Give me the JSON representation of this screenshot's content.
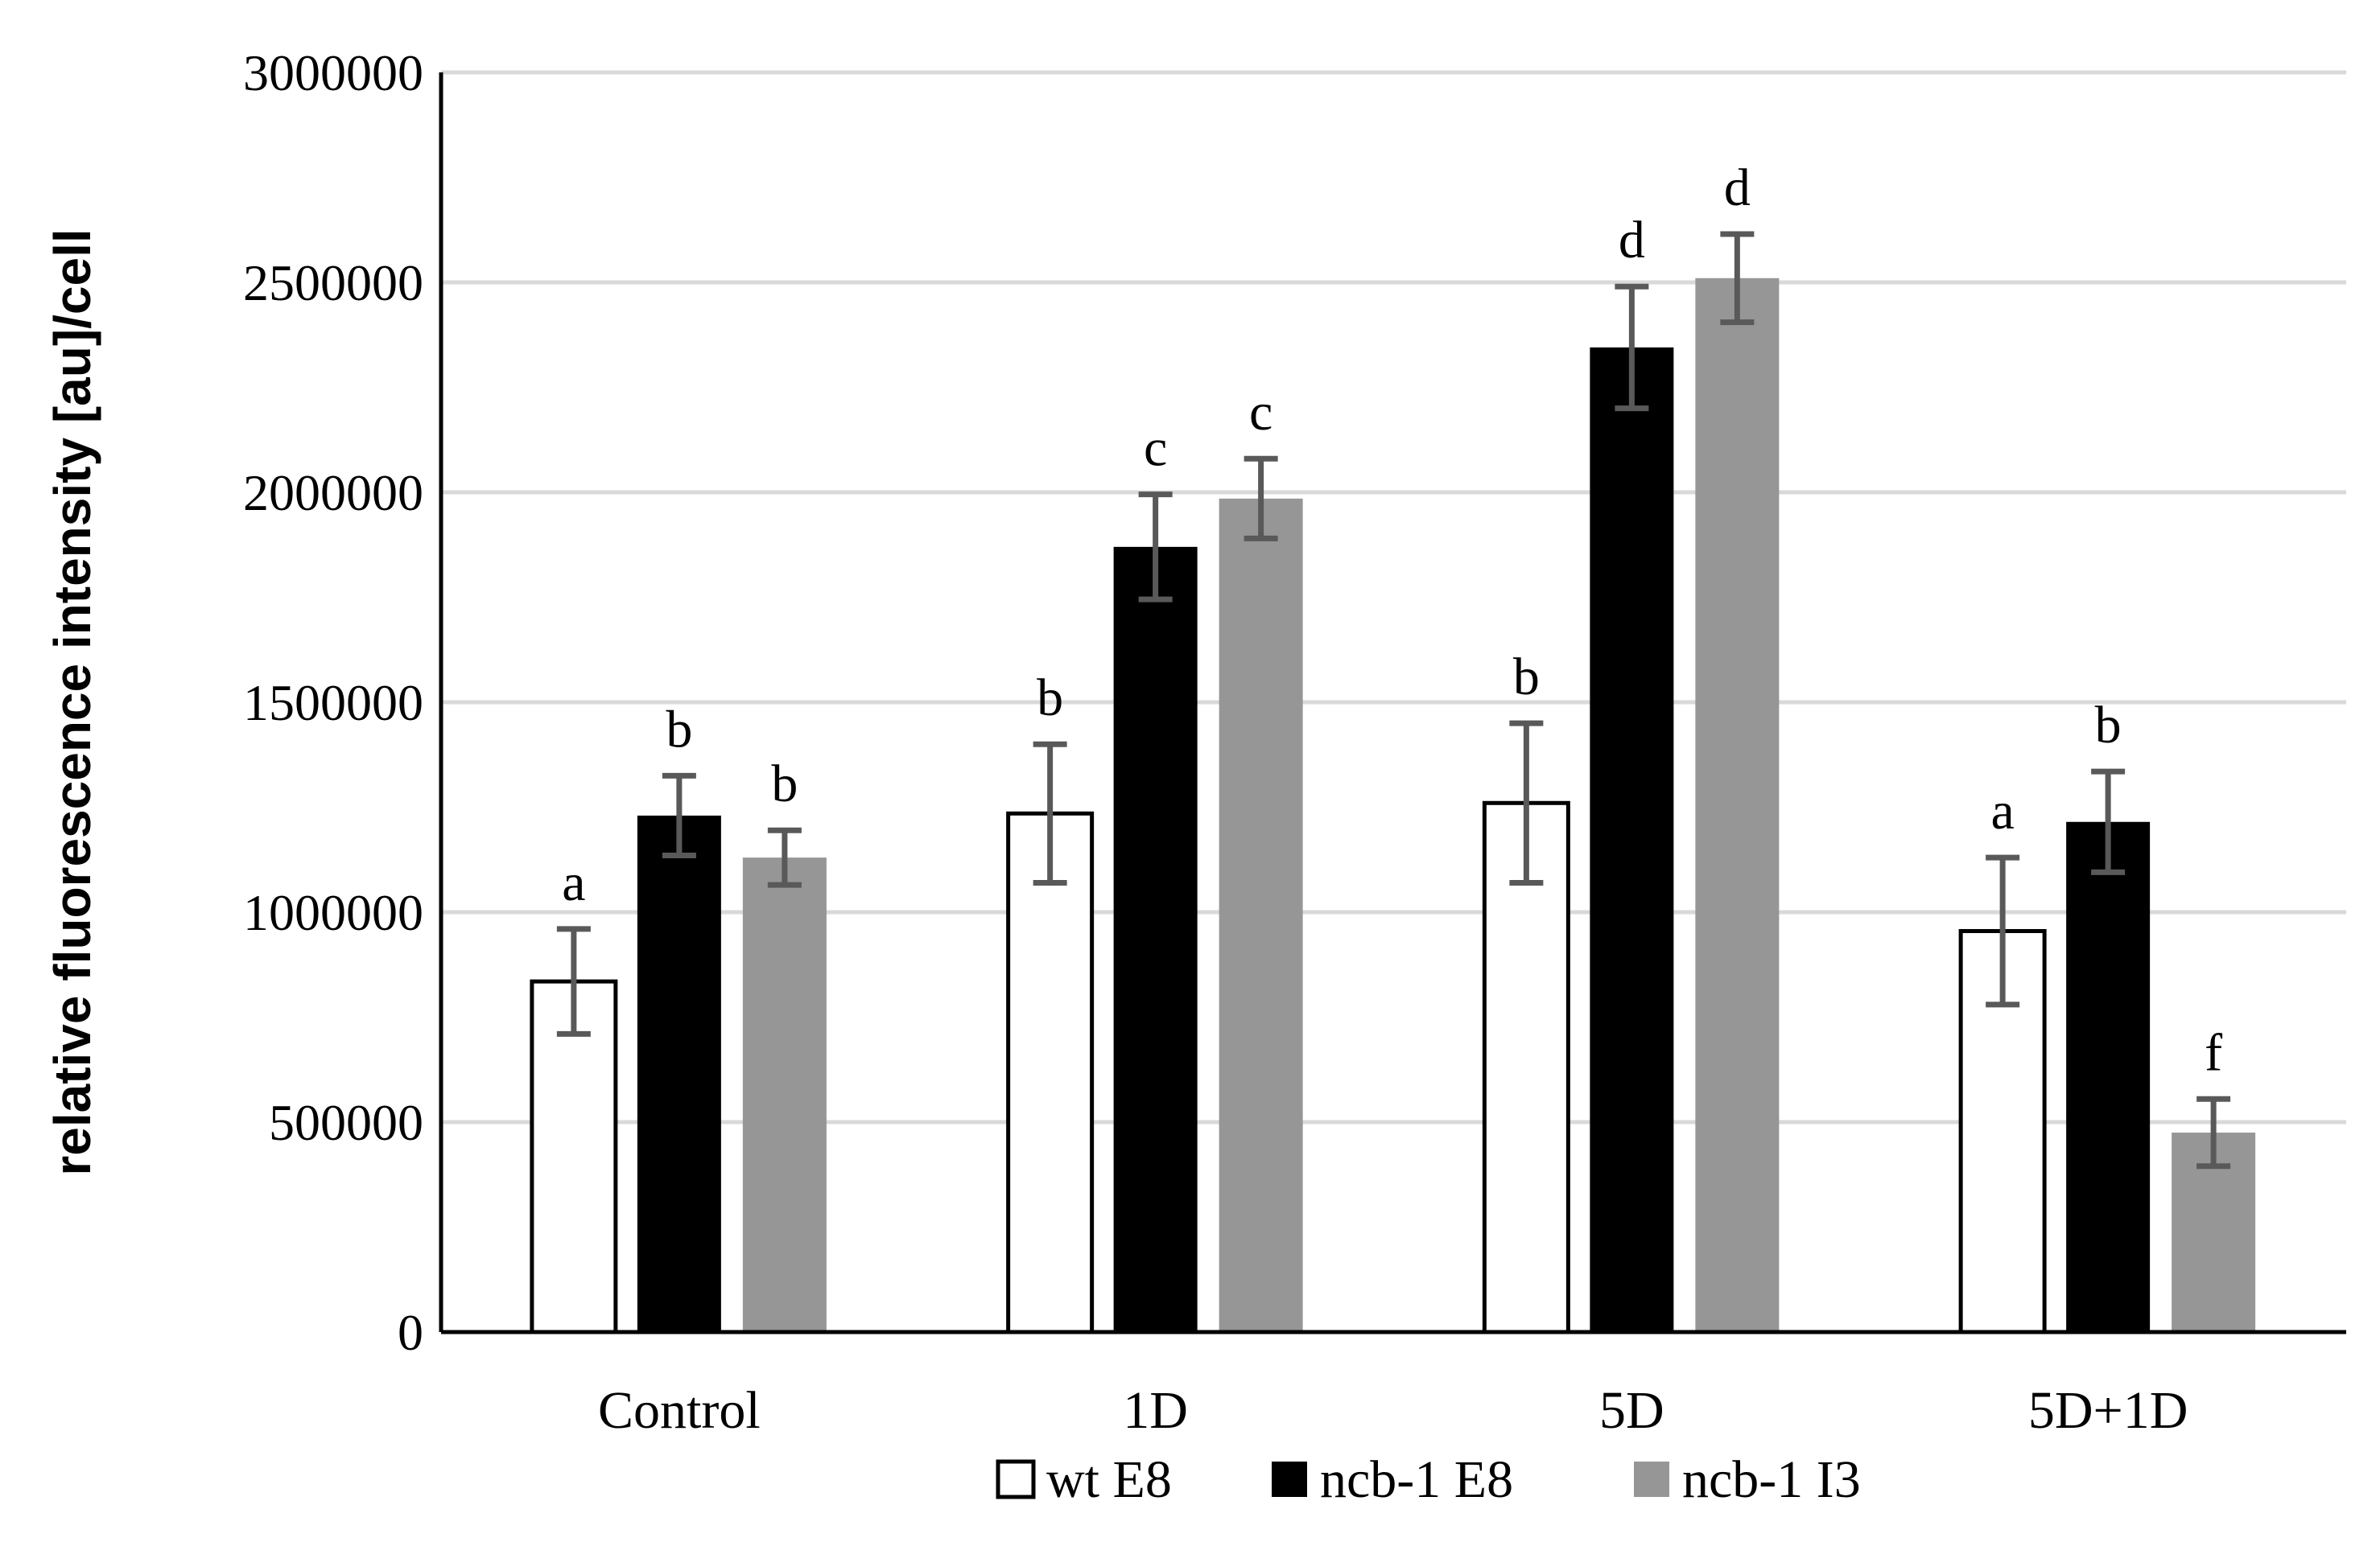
{
  "chart_data": {
    "type": "bar",
    "title": "",
    "xlabel": "",
    "ylabel": "relative fluorescence intensity [au]/cell",
    "ylim": [
      0,
      3000000
    ],
    "yticks": [
      0,
      500000,
      1000000,
      1500000,
      2000000,
      2500000,
      3000000
    ],
    "ytick_labels": [
      "0",
      "500000",
      "1000000",
      "1500000",
      "2000000",
      "2500000",
      "3000000"
    ],
    "grid": true,
    "legend_position": "bottom",
    "categories": [
      "Control",
      "1D",
      "5D",
      "5D+1D"
    ],
    "series": [
      {
        "name": "wt E8",
        "color": "#ffffff",
        "edge": "#000000",
        "values": [
          835000,
          1235000,
          1260000,
          955000
        ],
        "errors": [
          125000,
          165000,
          190000,
          175000
        ],
        "sig_letters": [
          "a",
          "b",
          "b",
          "a"
        ]
      },
      {
        "name": "ncb-1 E8",
        "color": "#000000",
        "edge": "#000000",
        "values": [
          1230000,
          1870000,
          2345000,
          1215000
        ],
        "errors": [
          95000,
          125000,
          145000,
          120000
        ],
        "sig_letters": [
          "b",
          "c",
          "d",
          "b"
        ]
      },
      {
        "name": "ncb-1 I3",
        "color": "#969696",
        "edge": "#969696",
        "values": [
          1130000,
          1985000,
          2510000,
          475000
        ],
        "errors": [
          65000,
          95000,
          105000,
          80000
        ],
        "sig_letters": [
          "b",
          "c",
          "d",
          "f"
        ]
      }
    ],
    "colors": {
      "grid": "#d9d9d9",
      "axis": "#000000",
      "error_bar": "#595959"
    }
  }
}
